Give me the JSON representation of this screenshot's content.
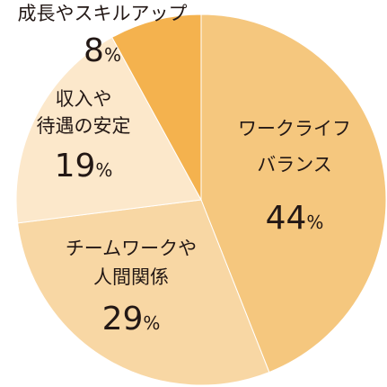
{
  "chart_data": {
    "type": "pie",
    "start_angle_deg": 0,
    "direction": "clockwise",
    "slices": [
      {
        "label_lines": [
          "ワークライフ",
          "バランス"
        ],
        "value": 44,
        "value_text": "44",
        "unit": "%",
        "color": "#f5c77e"
      },
      {
        "label_lines": [
          "チームワークや",
          "人間関係"
        ],
        "value": 29,
        "value_text": "29",
        "unit": "%",
        "color": "#f8d7a4"
      },
      {
        "label_lines": [
          "収入や",
          "待遇の安定"
        ],
        "value": 19,
        "value_text": "19",
        "unit": "%",
        "color": "#fce8cb"
      },
      {
        "label_lines": [
          "成長やスキルアップ"
        ],
        "value": 8,
        "value_text": "8",
        "unit": "%",
        "color": "#f4b24e"
      }
    ]
  }
}
